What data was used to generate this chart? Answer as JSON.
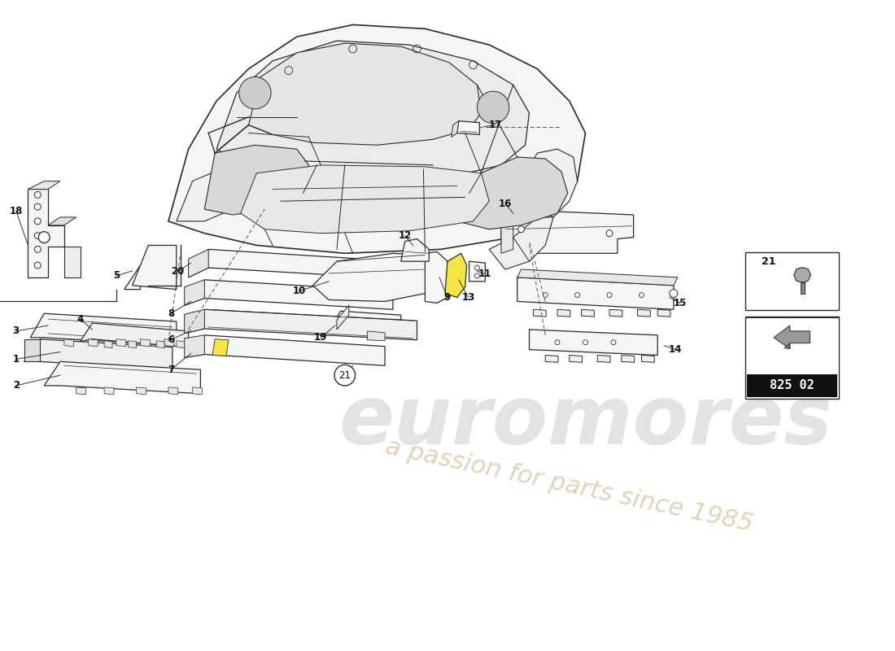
{
  "background_color": "#ffffff",
  "line_color": "#2a2a2a",
  "part_number_text": "825 02",
  "watermark1": "euromores",
  "watermark2": "a passion for parts since 1985",
  "watermark_color1": "#c8c8c8",
  "watermark_color2": "#d4b483",
  "fig_width": 11.0,
  "fig_height": 8.0,
  "dpi": 100
}
